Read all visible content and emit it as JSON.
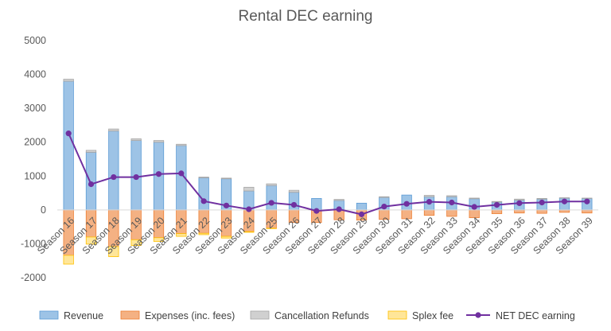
{
  "chart_data": {
    "type": "bar",
    "title": "Rental DEC earning",
    "xlabel": "",
    "ylabel": "",
    "ylim": [
      -2000,
      5000
    ],
    "yticks": [
      -2000,
      -1000,
      0,
      1000,
      2000,
      3000,
      4000,
      5000
    ],
    "grid": false,
    "legend_position": "bottom",
    "categories": [
      "Season 16",
      "Season 17",
      "Season 18",
      "Season 19",
      "Season 20",
      "Season 21",
      "Season 22",
      "Season 23",
      "Season 24",
      "Season 25",
      "Season 26",
      "Season 27",
      "Season 28",
      "Season 29",
      "Season 30",
      "Season 31",
      "Season 32",
      "Season 33",
      "Season 34",
      "Season 35",
      "Season 36",
      "Season 37",
      "Season 38",
      "Season 39"
    ],
    "series": [
      {
        "name": "Revenue",
        "kind": "bar",
        "color": "#9DC3E6",
        "stroke": "#5B9BD5",
        "values": [
          3800,
          1700,
          2330,
          2050,
          2000,
          1900,
          950,
          920,
          560,
          720,
          520,
          340,
          280,
          200,
          370,
          440,
          390,
          390,
          330,
          230,
          290,
          320,
          350,
          340
        ]
      },
      {
        "name": "Expenses (inc. fees)",
        "kind": "bar",
        "color": "#F4B183",
        "stroke": "#ED7D31",
        "values": [
          -1340,
          -800,
          -1080,
          -880,
          -820,
          -700,
          -690,
          -780,
          -640,
          -540,
          -370,
          -370,
          -290,
          -300,
          -280,
          -260,
          -160,
          -190,
          -230,
          -110,
          -90,
          -100,
          -70,
          -90
        ]
      },
      {
        "name": "Cancellation Refunds",
        "kind": "bar",
        "color": "#D0D0D0",
        "stroke": "#A5A5A5",
        "values": [
          60,
          60,
          60,
          50,
          50,
          40,
          20,
          20,
          110,
          50,
          60,
          0,
          30,
          0,
          20,
          0,
          40,
          30,
          20,
          20,
          30,
          20,
          10,
          10
        ]
      },
      {
        "name": "Splex fee",
        "kind": "bar",
        "color": "#FFE699",
        "stroke": "#FFC000",
        "values": [
          -260,
          -210,
          -300,
          -170,
          -110,
          -80,
          -40,
          -50,
          -20,
          -10,
          0,
          0,
          0,
          0,
          0,
          0,
          0,
          0,
          0,
          0,
          0,
          0,
          0,
          0
        ]
      },
      {
        "name": "NET DEC earning",
        "kind": "line",
        "color": "#7030A0",
        "values": [
          2260,
          760,
          970,
          970,
          1060,
          1080,
          260,
          130,
          20,
          210,
          150,
          -30,
          20,
          -130,
          100,
          180,
          240,
          220,
          90,
          150,
          200,
          220,
          250,
          250
        ]
      }
    ]
  }
}
